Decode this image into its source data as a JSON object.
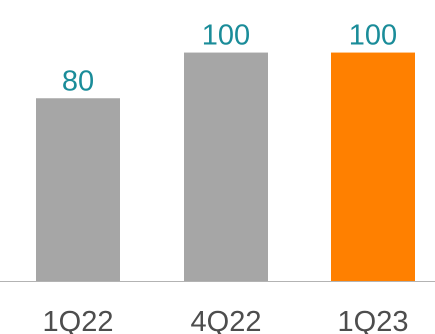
{
  "chart_data": {
    "type": "bar",
    "categories": [
      "1Q22",
      "4Q22",
      "1Q23"
    ],
    "values": [
      80,
      100,
      100
    ],
    "value_labels": [
      "80",
      "100",
      "100"
    ],
    "title": "",
    "xlabel": "",
    "ylabel": "",
    "ylim": [
      0,
      102
    ],
    "grid": false,
    "legend": "none",
    "colors": {
      "bars": [
        "#a6a6a6",
        "#a6a6a6",
        "#ff8000"
      ],
      "value_label": "#1a8c99",
      "tick_label": "#4d4d4d",
      "axis": "#b3b3b3"
    }
  }
}
